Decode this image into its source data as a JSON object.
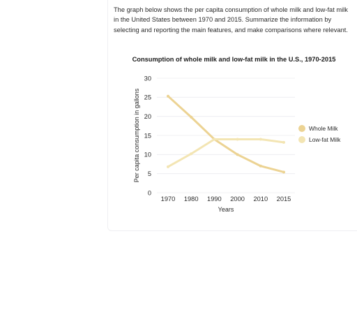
{
  "prompt": {
    "text": "The graph below shows the per capita consumption of whole milk and low-fat milk in the United States between 1970 and 2015. Summarize the information by selecting and reporting the main features, and make comparisons where relevant."
  },
  "colors": {
    "whole_milk": "#ecd393",
    "low_fat_milk": "#f3e5b3",
    "gridline": "#ececef"
  },
  "chart_data": {
    "type": "line",
    "title": "Consumption of whole milk and low-fat milk in the U.S., 1970-2015",
    "xlabel": "Years",
    "ylabel": "Per capita consumption in gallons",
    "categories": [
      "1970",
      "1980",
      "1990",
      "2000",
      "2010",
      "2015"
    ],
    "ylim": [
      0,
      30
    ],
    "yticks": [
      0,
      5,
      10,
      15,
      20,
      25,
      30
    ],
    "grid": true,
    "legend_position": "right",
    "series": [
      {
        "name": "Whole Milk",
        "values": [
          25.3,
          19.8,
          14.0,
          10.0,
          7.0,
          5.4
        ]
      },
      {
        "name": "Low-fat Milk",
        "values": [
          6.8,
          10.2,
          14.0,
          14.0,
          14.0,
          13.2
        ]
      }
    ]
  }
}
